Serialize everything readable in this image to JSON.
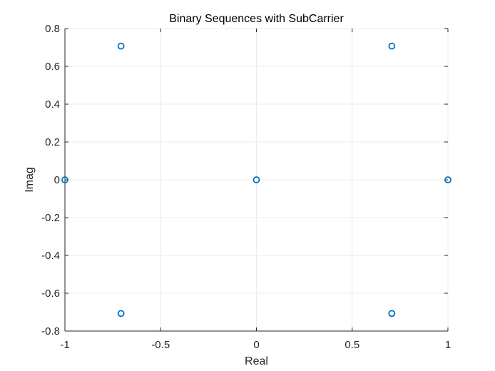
{
  "chart_data": {
    "type": "scatter",
    "title": "Binary Sequences with SubCarrier",
    "xlabel": "Real",
    "ylabel": "Imag",
    "xlim": [
      -1,
      1
    ],
    "ylim": [
      -0.8,
      0.8
    ],
    "xticks": [
      -1,
      -0.5,
      0,
      0.5,
      1
    ],
    "xtick_labels": [
      "-1",
      "-0.5",
      "0",
      "0.5",
      "1"
    ],
    "yticks": [
      0.8,
      0.6,
      0.4,
      0.2,
      0,
      -0.2,
      -0.4,
      -0.6,
      -0.8
    ],
    "ytick_labels": [
      "0.8",
      "0.6",
      "0.4",
      "0.2",
      "0",
      "-0.2",
      "-0.4",
      "-0.6",
      "-0.8"
    ],
    "grid": true,
    "marker": "circle-open",
    "marker_color": "#0072BD",
    "series": [
      {
        "points": [
          {
            "x": -1,
            "y": 0
          },
          {
            "x": -0.7071,
            "y": 0.7071
          },
          {
            "x": -0.7071,
            "y": -0.7071
          },
          {
            "x": 0,
            "y": 0
          },
          {
            "x": 0.7071,
            "y": 0.7071
          },
          {
            "x": 0.7071,
            "y": -0.7071
          },
          {
            "x": 1,
            "y": 0
          }
        ]
      }
    ]
  }
}
